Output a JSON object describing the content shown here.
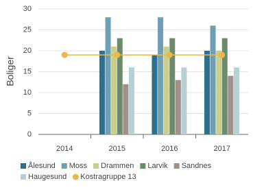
{
  "chart_data": {
    "type": "bar",
    "y_label": "Boliger",
    "categories": [
      "2014",
      "2015",
      "2016",
      "2017"
    ],
    "series": [
      {
        "name": "Ålesund",
        "color": "#2e6e8e",
        "values": [
          null,
          20,
          19,
          20
        ]
      },
      {
        "name": "Moss",
        "color": "#6f9fb5",
        "values": [
          null,
          28,
          28,
          26
        ]
      },
      {
        "name": "Drammen",
        "color": "#c9cf8a",
        "values": [
          null,
          21,
          21,
          20
        ]
      },
      {
        "name": "Larvik",
        "color": "#6b8a6e",
        "values": [
          null,
          23,
          23,
          23
        ]
      },
      {
        "name": "Sandnes",
        "color": "#9e928a",
        "values": [
          null,
          12,
          13,
          14
        ]
      },
      {
        "name": "Haugesund",
        "color": "#b8d0d3",
        "values": [
          null,
          16,
          16,
          16
        ]
      },
      {
        "name": "Kostragruppe 13",
        "color": "#e8b84a",
        "type": "line",
        "values": [
          19,
          19,
          19,
          19
        ]
      }
    ],
    "ylim": [
      0,
      30
    ],
    "yticks": [
      0,
      5,
      10,
      15,
      20,
      25,
      30
    ],
    "grid": true
  }
}
